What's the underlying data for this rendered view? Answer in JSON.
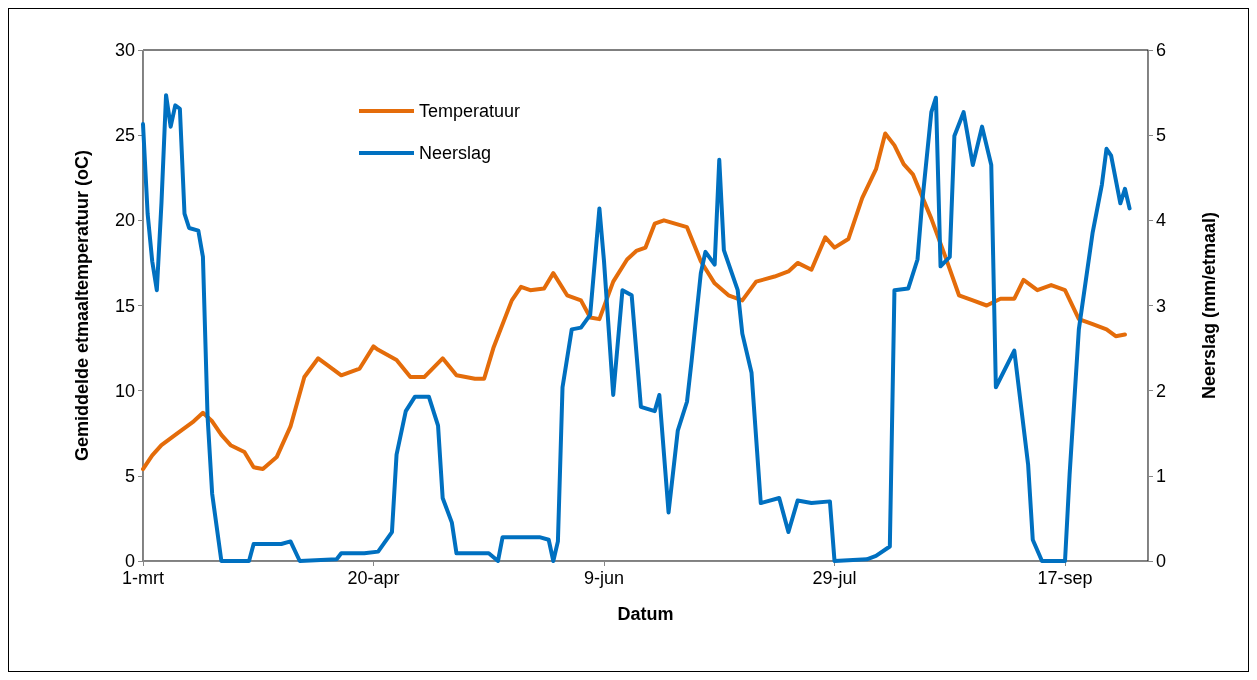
{
  "chart_data": {
    "type": "line",
    "xlabel": "Datum",
    "ylabel": "Gemiddelde etmaaltemperatuur (oC)",
    "y2label": "Neerslag (mm/etmaal)",
    "xlim": [
      "--03-01",
      "--10-05"
    ],
    "xticks": [
      {
        "value": "--03-01",
        "label": "1-mrt"
      },
      {
        "value": "--04-20",
        "label": "20-apr"
      },
      {
        "value": "--06-09",
        "label": "9-jun"
      },
      {
        "value": "--07-29",
        "label": "29-jul"
      },
      {
        "value": "--09-17",
        "label": "17-sep"
      }
    ],
    "ylim": [
      0,
      30
    ],
    "yticks": [
      0,
      5,
      10,
      15,
      20,
      25,
      30
    ],
    "y2lim": [
      0,
      6
    ],
    "y2ticks": [
      0,
      1,
      2,
      3,
      4,
      5,
      6
    ],
    "grid": false,
    "legend": "top left",
    "marker": "none",
    "line_style": "solid",
    "series": [
      {
        "name": "Temperatuur",
        "color": "#e46c0a",
        "x": [
          "--03-01",
          "--03-03",
          "--03-05",
          "--03-08",
          "--03-10",
          "--03-12",
          "--03-14",
          "--03-16",
          "--03-18",
          "--03-20",
          "--03-23",
          "--03-25",
          "--03-27",
          "--03-30",
          "--04-02",
          "--04-05",
          "--04-08",
          "--04-10",
          "--04-13",
          "--04-17",
          "--04-20",
          "--04-21",
          "--04-25",
          "--04-28",
          "--05-01",
          "--05-05",
          "--05-08",
          "--05-12",
          "--05-14",
          "--05-16",
          "--05-20",
          "--05-22",
          "--05-24",
          "--05-27",
          "--05-29",
          "--06-01",
          "--06-04",
          "--06-06",
          "--06-08",
          "--06-11",
          "--06-14",
          "--06-16",
          "--06-18",
          "--06-20",
          "--06-22",
          "--06-27",
          "--06-30",
          "--07-03",
          "--07-06",
          "--07-09",
          "--07-12",
          "--07-16",
          "--07-19",
          "--07-21",
          "--07-24",
          "--07-27",
          "--07-29",
          "--08-01",
          "--08-04",
          "--08-07",
          "--08-09",
          "--08-11",
          "--08-13",
          "--08-15",
          "--08-19",
          "--08-22",
          "--08-25",
          "--08-28",
          "--08-31",
          "--09-03",
          "--09-06",
          "--09-08",
          "--09-11",
          "--09-14",
          "--09-17",
          "--09-20",
          "--09-23",
          "--09-26",
          "--09-28",
          "--09-30"
        ],
        "values": [
          5.4,
          6.2,
          6.8,
          7.4,
          7.8,
          8.2,
          8.7,
          8.2,
          7.4,
          6.8,
          6.4,
          5.5,
          5.4,
          6.1,
          7.9,
          10.8,
          11.9,
          11.5,
          10.9,
          11.3,
          12.6,
          12.4,
          11.8,
          10.8,
          10.8,
          11.9,
          10.9,
          10.7,
          10.7,
          12.5,
          15.3,
          16.1,
          15.9,
          16.0,
          16.9,
          15.6,
          15.3,
          14.3,
          14.2,
          16.4,
          17.7,
          18.2,
          18.4,
          19.8,
          20.0,
          19.6,
          17.6,
          16.3,
          15.6,
          15.3,
          16.4,
          16.7,
          17.0,
          17.5,
          17.1,
          19.0,
          18.4,
          18.9,
          21.3,
          23.0,
          25.1,
          24.4,
          23.3,
          22.7,
          20.1,
          17.9,
          15.6,
          15.3,
          15.0,
          15.4,
          15.4,
          16.5,
          15.9,
          16.2,
          15.9,
          14.2,
          13.9,
          13.6,
          13.2,
          13.3
        ]
      },
      {
        "name": "Neerslag",
        "color": "#0070c0",
        "axis": "y2",
        "x": [
          "--03-01",
          "--03-02",
          "--03-03",
          "--03-04",
          "--03-05",
          "--03-06",
          "--03-07",
          "--03-08",
          "--03-09",
          "--03-10",
          "--03-11",
          "--03-13",
          "--03-14",
          "--03-15",
          "--03-16",
          "--03-18",
          "--03-24",
          "--03-25",
          "--03-31",
          "--04-02",
          "--04-04",
          "--04-12",
          "--04-13",
          "--04-18",
          "--04-21",
          "--04-24",
          "--04-25",
          "--04-27",
          "--04-29",
          "--05-02",
          "--05-04",
          "--05-05",
          "--05-07",
          "--05-08",
          "--05-15",
          "--05-17",
          "--05-18",
          "--05-26",
          "--05-28",
          "--05-29",
          "--05-30",
          "--05-31",
          "--06-02",
          "--06-04",
          "--06-06",
          "--06-08",
          "--06-09",
          "--06-11",
          "--06-13",
          "--06-15",
          "--06-17",
          "--06-20",
          "--06-21",
          "--06-23",
          "--06-25",
          "--06-27",
          "--06-28",
          "--06-30",
          "--07-01",
          "--07-03",
          "--07-04",
          "--07-05",
          "--07-08",
          "--07-09",
          "--07-11",
          "--07-13",
          "--07-17",
          "--07-19",
          "--07-21",
          "--07-24",
          "--07-28",
          "--07-29",
          "--08-05",
          "--08-07",
          "--08-10",
          "--08-11",
          "--08-14",
          "--08-16",
          "--08-17",
          "--08-19",
          "--08-20",
          "--08-21",
          "--08-23",
          "--08-24",
          "--08-26",
          "--08-28",
          "--08-30",
          "--09-01",
          "--09-02",
          "--09-06",
          "--09-09",
          "--09-10",
          "--09-12",
          "--09-17",
          "--09-18",
          "--09-20",
          "--09-23",
          "--09-25",
          "--09-26",
          "--09-27",
          "--09-29",
          "--09-30",
          "--10-01"
        ],
        "values": [
          5.13,
          4.08,
          3.52,
          3.18,
          4.2,
          5.47,
          5.1,
          5.35,
          5.31,
          4.08,
          3.91,
          3.88,
          3.57,
          1.7,
          0.79,
          0,
          0,
          0.2,
          0.2,
          0.23,
          0,
          0.02,
          0.09,
          0.09,
          0.11,
          0.34,
          1.25,
          1.76,
          1.93,
          1.93,
          1.59,
          0.74,
          0.45,
          0.09,
          0.09,
          0,
          0.28,
          0.28,
          0.25,
          0,
          0.23,
          2.04,
          2.72,
          2.74,
          2.89,
          4.14,
          3.52,
          1.95,
          3.18,
          3.12,
          1.81,
          1.76,
          1.95,
          0.57,
          1.53,
          1.87,
          2.35,
          3.38,
          3.63,
          3.48,
          4.71,
          3.65,
          3.18,
          2.67,
          2.21,
          0.68,
          0.74,
          0.34,
          0.71,
          0.68,
          0.7,
          0,
          0.02,
          0.06,
          0.17,
          3.18,
          3.2,
          3.54,
          4.2,
          5.27,
          5.44,
          3.46,
          3.57,
          4.99,
          5.27,
          4.65,
          5.1,
          4.65,
          2.04,
          2.47,
          1.13,
          0.25,
          0,
          0,
          1.02,
          2.72,
          3.86,
          4.42,
          4.84,
          4.76,
          4.2,
          4.37,
          4.14
        ]
      }
    ]
  }
}
